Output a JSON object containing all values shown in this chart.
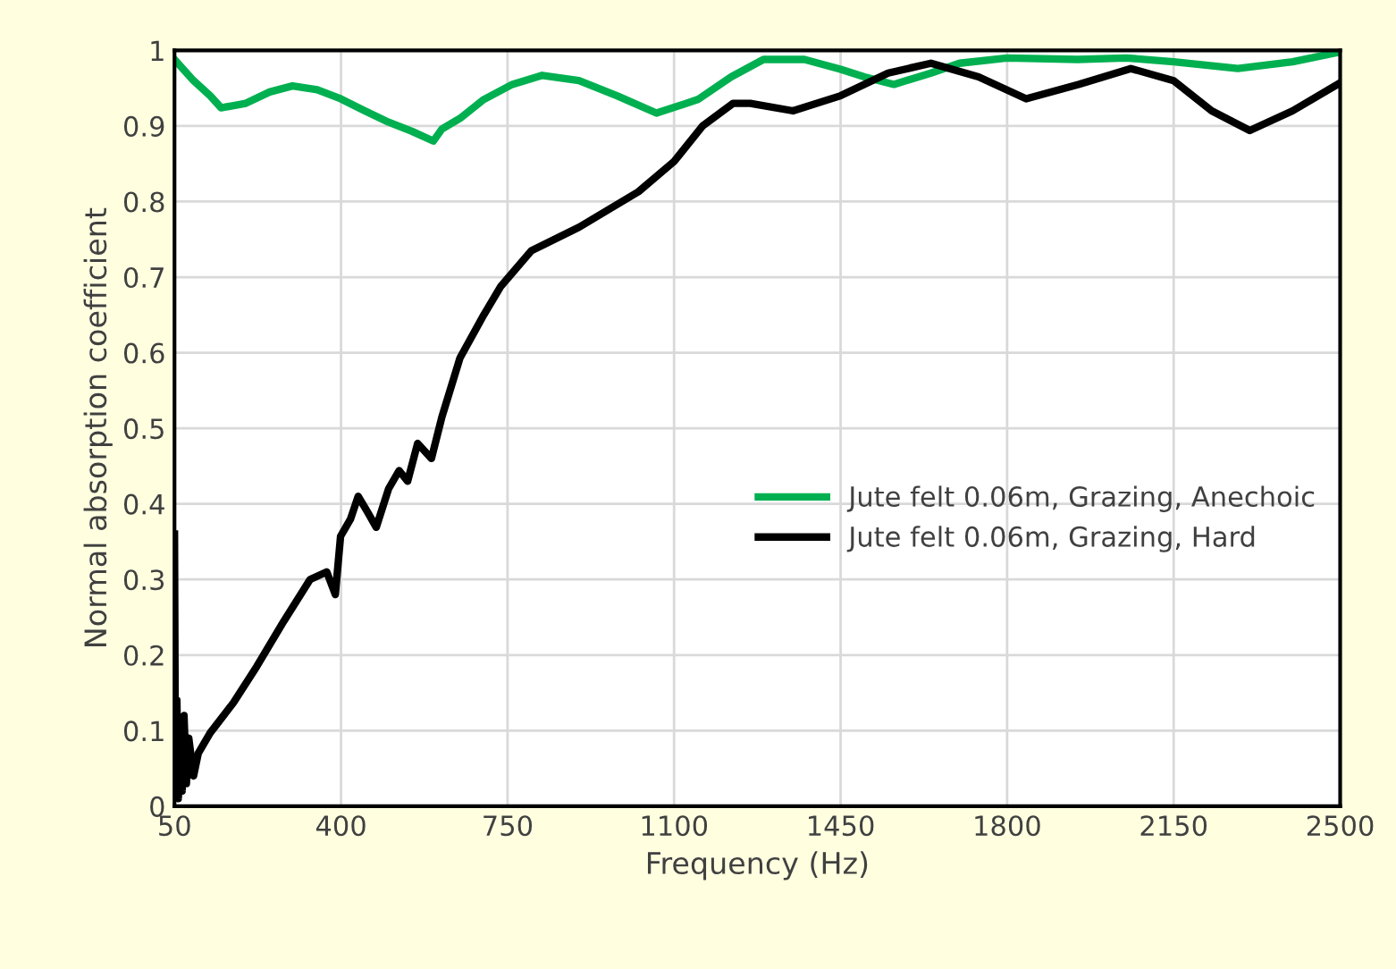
{
  "chart_data": {
    "type": "line",
    "xlabel": "Frequency (Hz)",
    "ylabel": "Normal absorption coefficient",
    "xlim": [
      50,
      2500
    ],
    "xticks": [
      50,
      400,
      750,
      1100,
      1450,
      1800,
      2150,
      2500
    ],
    "ylim": [
      0,
      1
    ],
    "yticks": [
      0,
      0.1,
      0.2,
      0.3,
      0.4,
      0.5,
      0.6,
      0.7,
      0.8,
      0.9,
      1
    ],
    "grid": true,
    "legend": "right",
    "line_style": "solid",
    "marker": "none",
    "series": [
      {
        "name": "Jute felt 0.06m, Grazing, Anechoic",
        "color": "#00b050",
        "x": [
          50,
          90,
          125,
          148,
          200,
          250,
          298,
          350,
          399,
          450,
          500,
          549,
          594,
          612,
          650,
          700,
          760,
          823,
          900,
          980,
          1063,
          1150,
          1220,
          1288,
          1374,
          1450,
          1500,
          1562,
          1640,
          1700,
          1800,
          1948,
          2050,
          2150,
          2285,
          2400,
          2500
        ],
        "values": [
          0.988,
          0.96,
          0.94,
          0.924,
          0.93,
          0.945,
          0.953,
          0.948,
          0.936,
          0.92,
          0.905,
          0.893,
          0.88,
          0.896,
          0.91,
          0.935,
          0.955,
          0.967,
          0.96,
          0.94,
          0.917,
          0.935,
          0.965,
          0.988,
          0.988,
          0.975,
          0.965,
          0.955,
          0.97,
          0.983,
          0.99,
          0.988,
          0.99,
          0.985,
          0.976,
          0.985,
          0.998
        ]
      },
      {
        "name": "Jute felt 0.06m, Grazing, Hard",
        "color": "#000000",
        "x": [
          50,
          52,
          55,
          58,
          62,
          66,
          70,
          75,
          80,
          90,
          100,
          125,
          174,
          223,
          280,
          335,
          370,
          388,
          399,
          420,
          436,
          455,
          474,
          500,
          522,
          540,
          561,
          590,
          612,
          650,
          700,
          736,
          800,
          900,
          1025,
          1100,
          1160,
          1224,
          1260,
          1350,
          1450,
          1550,
          1640,
          1740,
          1840,
          1950,
          2060,
          2150,
          2230,
          2310,
          2400,
          2500
        ],
        "values": [
          0.36,
          0.02,
          0.14,
          0.01,
          0.1,
          0.02,
          0.12,
          0.03,
          0.09,
          0.04,
          0.07,
          0.097,
          0.137,
          0.185,
          0.245,
          0.3,
          0.31,
          0.28,
          0.357,
          0.38,
          0.41,
          0.39,
          0.369,
          0.42,
          0.444,
          0.43,
          0.48,
          0.46,
          0.515,
          0.593,
          0.65,
          0.688,
          0.735,
          0.766,
          0.813,
          0.853,
          0.9,
          0.93,
          0.93,
          0.92,
          0.94,
          0.97,
          0.983,
          0.965,
          0.936,
          0.955,
          0.976,
          0.96,
          0.92,
          0.894,
          0.92,
          0.957
        ]
      }
    ]
  }
}
